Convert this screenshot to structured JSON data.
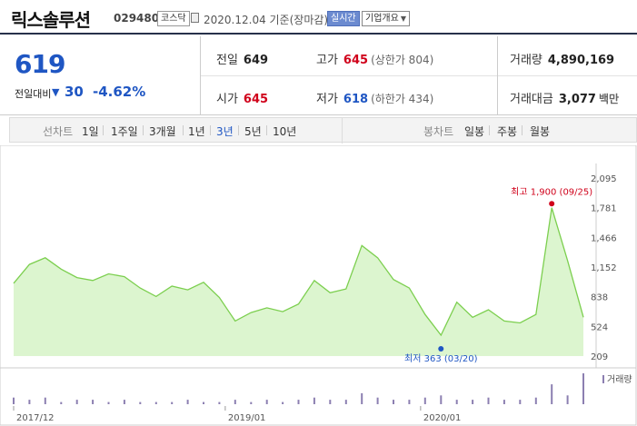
{
  "header": {
    "name": "릭스솔루션",
    "code": "029480",
    "market": "코스닥",
    "date": "2020.12.04 기준(장마감)",
    "realtime": "실시간",
    "company_info": "기업개요",
    "caret": "▼"
  },
  "quote": {
    "price": "619",
    "change_label": "전일대비",
    "change_arrow": "▼",
    "change_value": "30",
    "change_percent": "-4.62%",
    "prev_close": {
      "label": "전일",
      "value": "649"
    },
    "high": {
      "label": "고가",
      "value": "645",
      "sub": "(상한가 804)"
    },
    "volume": {
      "label": "거래량",
      "value": "4,890,169"
    },
    "open": {
      "label": "시가",
      "value": "645"
    },
    "low": {
      "label": "저가",
      "value": "618",
      "sub": "(하한가 434)"
    },
    "amount": {
      "label": "거래대금",
      "value": "3,077",
      "unit": "백만"
    }
  },
  "periods": {
    "label": "선차트",
    "items": [
      "1일",
      "1주일",
      "3개월",
      "1년",
      "3년",
      "5년",
      "10년"
    ],
    "selected": "3년",
    "candle_label": "봉차트",
    "candle_items": [
      "일봉",
      "주봉",
      "월봉"
    ]
  },
  "colors": {
    "line": "#7ccf4f",
    "fill": "#dcf5cf",
    "up": "#d0021b",
    "down": "#1f56c3",
    "volume": "#8c7fb1"
  },
  "chart_data": {
    "type": "area",
    "y_ticks": [
      2095,
      1781,
      1466,
      1152,
      838,
      524,
      209
    ],
    "ylim": [
      209,
      2095
    ],
    "x_ticks": [
      {
        "label": "2017/12",
        "x": 0
      },
      {
        "label": "2019/01",
        "x": 13
      },
      {
        "label": "2020/01",
        "x": 25
      }
    ],
    "x_count": 36,
    "values": [
      980,
      1180,
      1250,
      1130,
      1040,
      1010,
      1080,
      1050,
      930,
      840,
      950,
      910,
      990,
      830,
      580,
      670,
      720,
      680,
      760,
      1010,
      880,
      920,
      1380,
      1250,
      1020,
      930,
      650,
      430,
      780,
      620,
      700,
      580,
      560,
      650,
      1780,
      1220,
      620
    ],
    "max_label": "최고 1,900 (09/25)",
    "max_value": 1900,
    "max_index": 34,
    "min_label": "최저 363 (03/20)",
    "min_value": 363,
    "min_index": 27,
    "volume_label": "거래량",
    "volume": [
      3,
      2,
      3,
      1,
      2,
      2,
      1,
      2,
      1,
      1,
      1,
      2,
      1,
      1,
      2,
      1,
      2,
      1,
      2,
      3,
      2,
      2,
      5,
      3,
      2,
      2,
      3,
      4,
      2,
      2,
      3,
      2,
      2,
      3,
      9,
      4,
      14
    ]
  }
}
